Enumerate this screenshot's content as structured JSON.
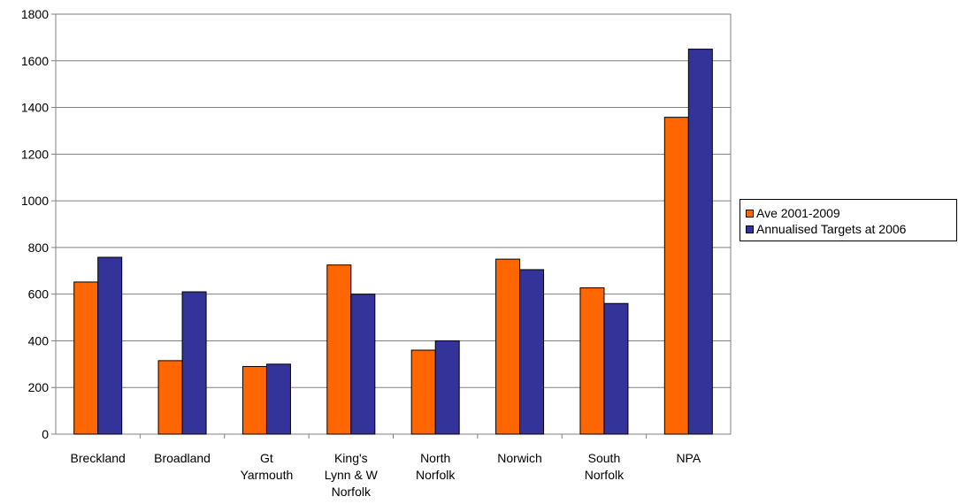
{
  "chart_data": {
    "type": "bar",
    "categories": [
      "Breckland",
      "Broadland",
      "Gt Yarmouth",
      "King's Lynn & W Norfolk",
      "North Norfolk",
      "Norwich",
      "South Norfolk",
      "NPA"
    ],
    "category_lines": [
      [
        "Breckland"
      ],
      [
        "Broadland"
      ],
      [
        "Gt",
        "Yarmouth"
      ],
      [
        "King's",
        "Lynn & W",
        "Norfolk"
      ],
      [
        "North",
        "Norfolk"
      ],
      [
        "Norwich"
      ],
      [
        "South",
        "Norfolk"
      ],
      [
        "NPA"
      ]
    ],
    "series": [
      {
        "name": "Ave 2001-2009",
        "color": "#ff6600",
        "values": [
          652,
          315,
          290,
          725,
          360,
          750,
          627,
          1358
        ]
      },
      {
        "name": "Annualised Targets at 2006",
        "color": "#333399",
        "values": [
          758,
          610,
          300,
          600,
          400,
          705,
          560,
          1650
        ]
      }
    ],
    "ylim": [
      0,
      1800
    ],
    "yticks": [
      "0",
      "200",
      "400",
      "600",
      "800",
      "1000",
      "1200",
      "1400",
      "1600",
      "1800"
    ],
    "grid": true,
    "legend_position": "right",
    "title": "",
    "xlabel": "",
    "ylabel": ""
  }
}
